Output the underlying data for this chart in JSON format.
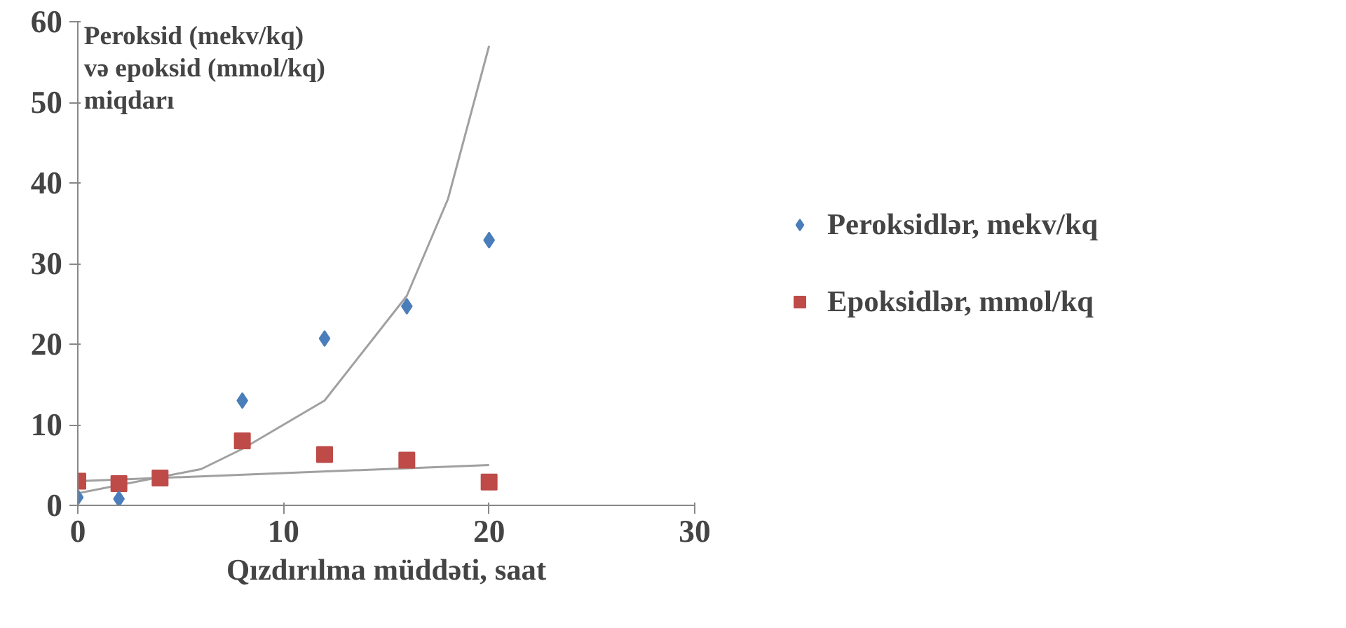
{
  "chart_data": {
    "type": "scatter",
    "ylabel": "Peroksid (mekv/kq)\nvə epoksid (mmol/kq)\nmiqdarı",
    "xlabel": "Qızdırılma müddəti, saat",
    "xlim": [
      0,
      30
    ],
    "xticks": [
      0,
      10,
      20,
      30
    ],
    "ylim": [
      0,
      60
    ],
    "yticks": [
      0,
      10,
      20,
      30,
      40,
      50,
      60
    ],
    "grid": false,
    "legend": "right",
    "series": [
      {
        "name": "Peroksidlər, mekv/kq",
        "color": "#4a7ebb",
        "marker": "diamond",
        "x": [
          0,
          2,
          8,
          12,
          16,
          20
        ],
        "values": [
          1.0,
          0.8,
          13.0,
          20.7,
          24.7,
          32.9
        ]
      },
      {
        "name": "Epoksidlər, mmol/kq",
        "color": "#be4b48",
        "marker": "square",
        "x": [
          0,
          2,
          4,
          8,
          12,
          16,
          20
        ],
        "values": [
          3.0,
          2.7,
          3.4,
          8.0,
          6.3,
          5.6,
          2.9
        ]
      },
      {
        "type": "line",
        "color": "#a0a0a0",
        "x": [
          0,
          6,
          8,
          12,
          16,
          18,
          20
        ],
        "values": [
          1.5,
          4.5,
          7,
          13,
          26,
          38,
          57
        ]
      },
      {
        "type": "line",
        "color": "#a0a0a0",
        "x": [
          0,
          20
        ],
        "values": [
          3,
          5
        ]
      }
    ]
  }
}
